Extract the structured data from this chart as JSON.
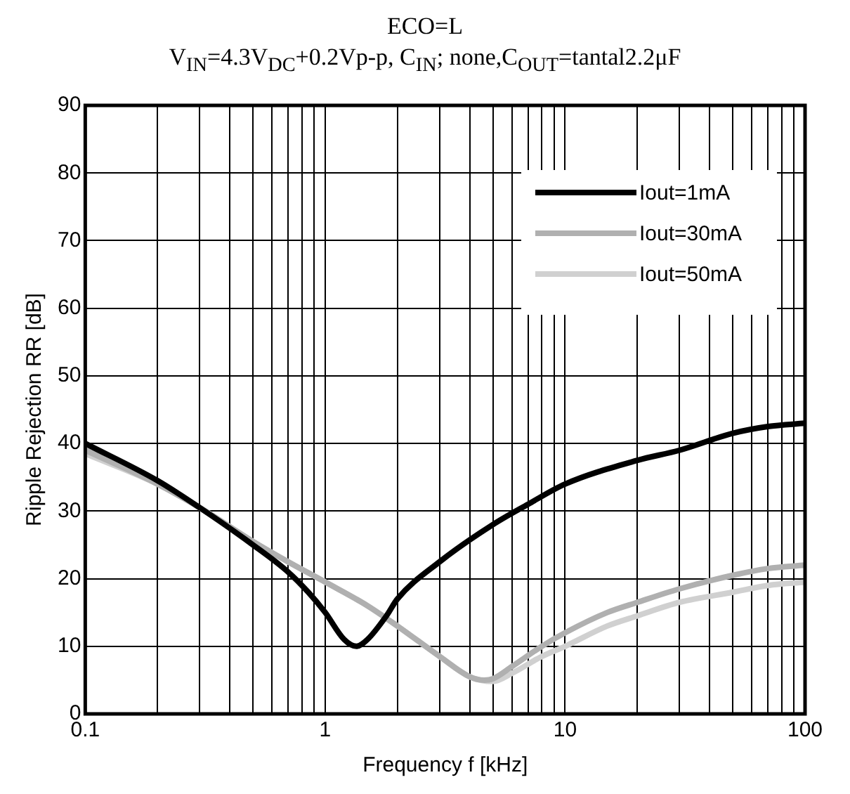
{
  "chart_data": {
    "type": "line",
    "title": "ECO=L",
    "subtitle": "V$_{IN}$=4.3V$_{DC}$+0.2Vp-p, C$_{IN}$; none,C$_{OUT}$=tantal2.2μF",
    "xlabel": "Frequency f [kHz]",
    "ylabel": "Ripple Rejection RR [dB]",
    "series": [
      {
        "name": "Iout=1mA",
        "color": "#000000",
        "x": [
          0.1,
          0.2,
          0.3,
          0.5,
          0.7,
          0.85,
          1,
          1.2,
          1.35,
          1.5,
          1.8,
          2,
          3,
          5,
          7,
          10,
          20,
          30,
          50,
          70,
          100
        ],
        "values": [
          40,
          34.5,
          30.5,
          25,
          21,
          18,
          15,
          11,
          10,
          11,
          14.5,
          17,
          22.5,
          28,
          31,
          34,
          37.5,
          39,
          41.5,
          42.5,
          43
        ]
      },
      {
        "name": "Iout=30mA",
        "color": "#b0b0b0",
        "x": [
          0.1,
          0.2,
          0.3,
          0.5,
          0.7,
          1,
          1.5,
          2,
          3,
          4,
          4.6,
          5,
          6,
          8,
          10,
          15,
          20,
          30,
          50,
          70,
          100
        ],
        "values": [
          39,
          34,
          30.5,
          25.5,
          22.5,
          19.5,
          16,
          13,
          8.5,
          5.5,
          5,
          5.2,
          7,
          10,
          12,
          15,
          16.5,
          18.5,
          20.5,
          21.5,
          22
        ]
      },
      {
        "name": "Iout=50mA",
        "color": "#d0d0d0",
        "x": [
          0.1,
          0.2,
          0.3,
          0.5,
          0.7,
          1,
          1.5,
          2,
          3,
          4,
          5,
          6,
          8,
          10,
          15,
          20,
          30,
          50,
          70,
          100
        ],
        "values": [
          38.5,
          34,
          30.5,
          25.5,
          22.5,
          19.5,
          16,
          13,
          8.5,
          5.5,
          4.8,
          6,
          8.5,
          10,
          13,
          14.5,
          16.5,
          18,
          19,
          19.5
        ]
      }
    ],
    "log": "x",
    "xlim": [
      0.1,
      100
    ],
    "xticks": [
      0.1,
      {
        "value": 0.2,
        "label": null
      },
      {
        "value": 0.3,
        "label": null
      },
      {
        "value": 0.4,
        "label": null
      },
      {
        "value": 0.5,
        "label": null
      },
      {
        "value": 0.6,
        "label": null
      },
      {
        "value": 0.7,
        "label": null
      },
      {
        "value": 0.8,
        "label": null
      },
      {
        "value": 0.9,
        "label": null
      },
      1,
      {
        "value": 2,
        "label": null
      },
      {
        "value": 3,
        "label": null
      },
      {
        "value": 4,
        "label": null
      },
      {
        "value": 5,
        "label": null
      },
      {
        "value": 6,
        "label": null
      },
      {
        "value": 7,
        "label": null
      },
      {
        "value": 8,
        "label": null
      },
      {
        "value": 9,
        "label": null
      },
      10,
      {
        "value": 20,
        "label": null
      },
      {
        "value": 30,
        "label": null
      },
      {
        "value": 40,
        "label": null
      },
      {
        "value": 50,
        "label": null
      },
      {
        "value": 60,
        "label": null
      },
      {
        "value": 70,
        "label": null
      },
      {
        "value": 80,
        "label": null
      },
      {
        "value": 90,
        "label": null
      },
      100
    ],
    "ylim": [
      0,
      90
    ],
    "yticks": [
      0,
      10,
      20,
      30,
      40,
      50,
      60,
      70,
      80,
      90
    ],
    "grid": true,
    "legend": "top right",
    "marker": "none",
    "line_style": "solid"
  }
}
